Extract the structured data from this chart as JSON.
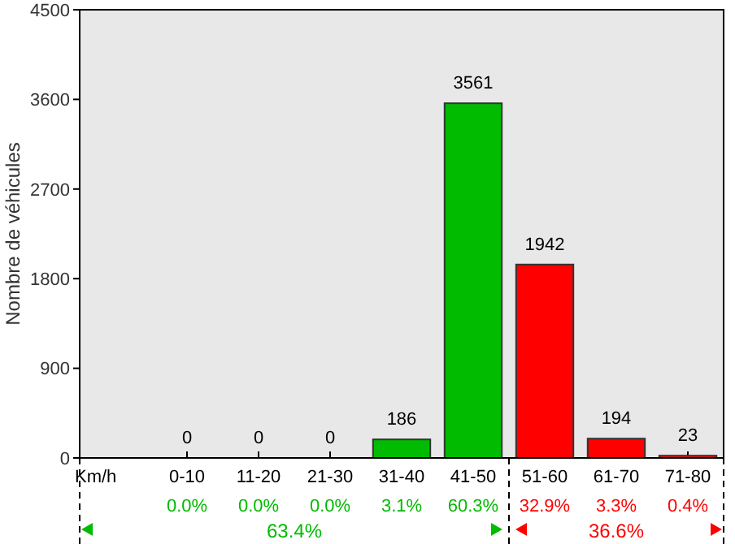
{
  "chart_data": {
    "type": "bar",
    "categories": [
      "0-10",
      "11-20",
      "21-30",
      "31-40",
      "41-50",
      "51-60",
      "61-70",
      "71-80"
    ],
    "values": [
      0,
      0,
      0,
      186,
      3561,
      1942,
      194,
      23
    ],
    "colors": [
      "#00bb00",
      "#00bb00",
      "#00bb00",
      "#00bb00",
      "#00bb00",
      "#ff0000",
      "#ff0000",
      "#ff0000"
    ],
    "ylim": [
      0,
      4500
    ],
    "yticks": [
      0,
      900,
      1800,
      2700,
      3600,
      4500
    ],
    "ylabel": "Nombre de véhicules",
    "xlabel": "Km/h",
    "data_labels": true,
    "grid": false,
    "annotations": [
      "0.0%",
      "0.0%",
      "0.0%",
      "3.1%",
      "60.3%",
      "32.9%",
      "3.3%",
      "0.4%",
      "63.4%",
      "36.6%"
    ]
  }
}
